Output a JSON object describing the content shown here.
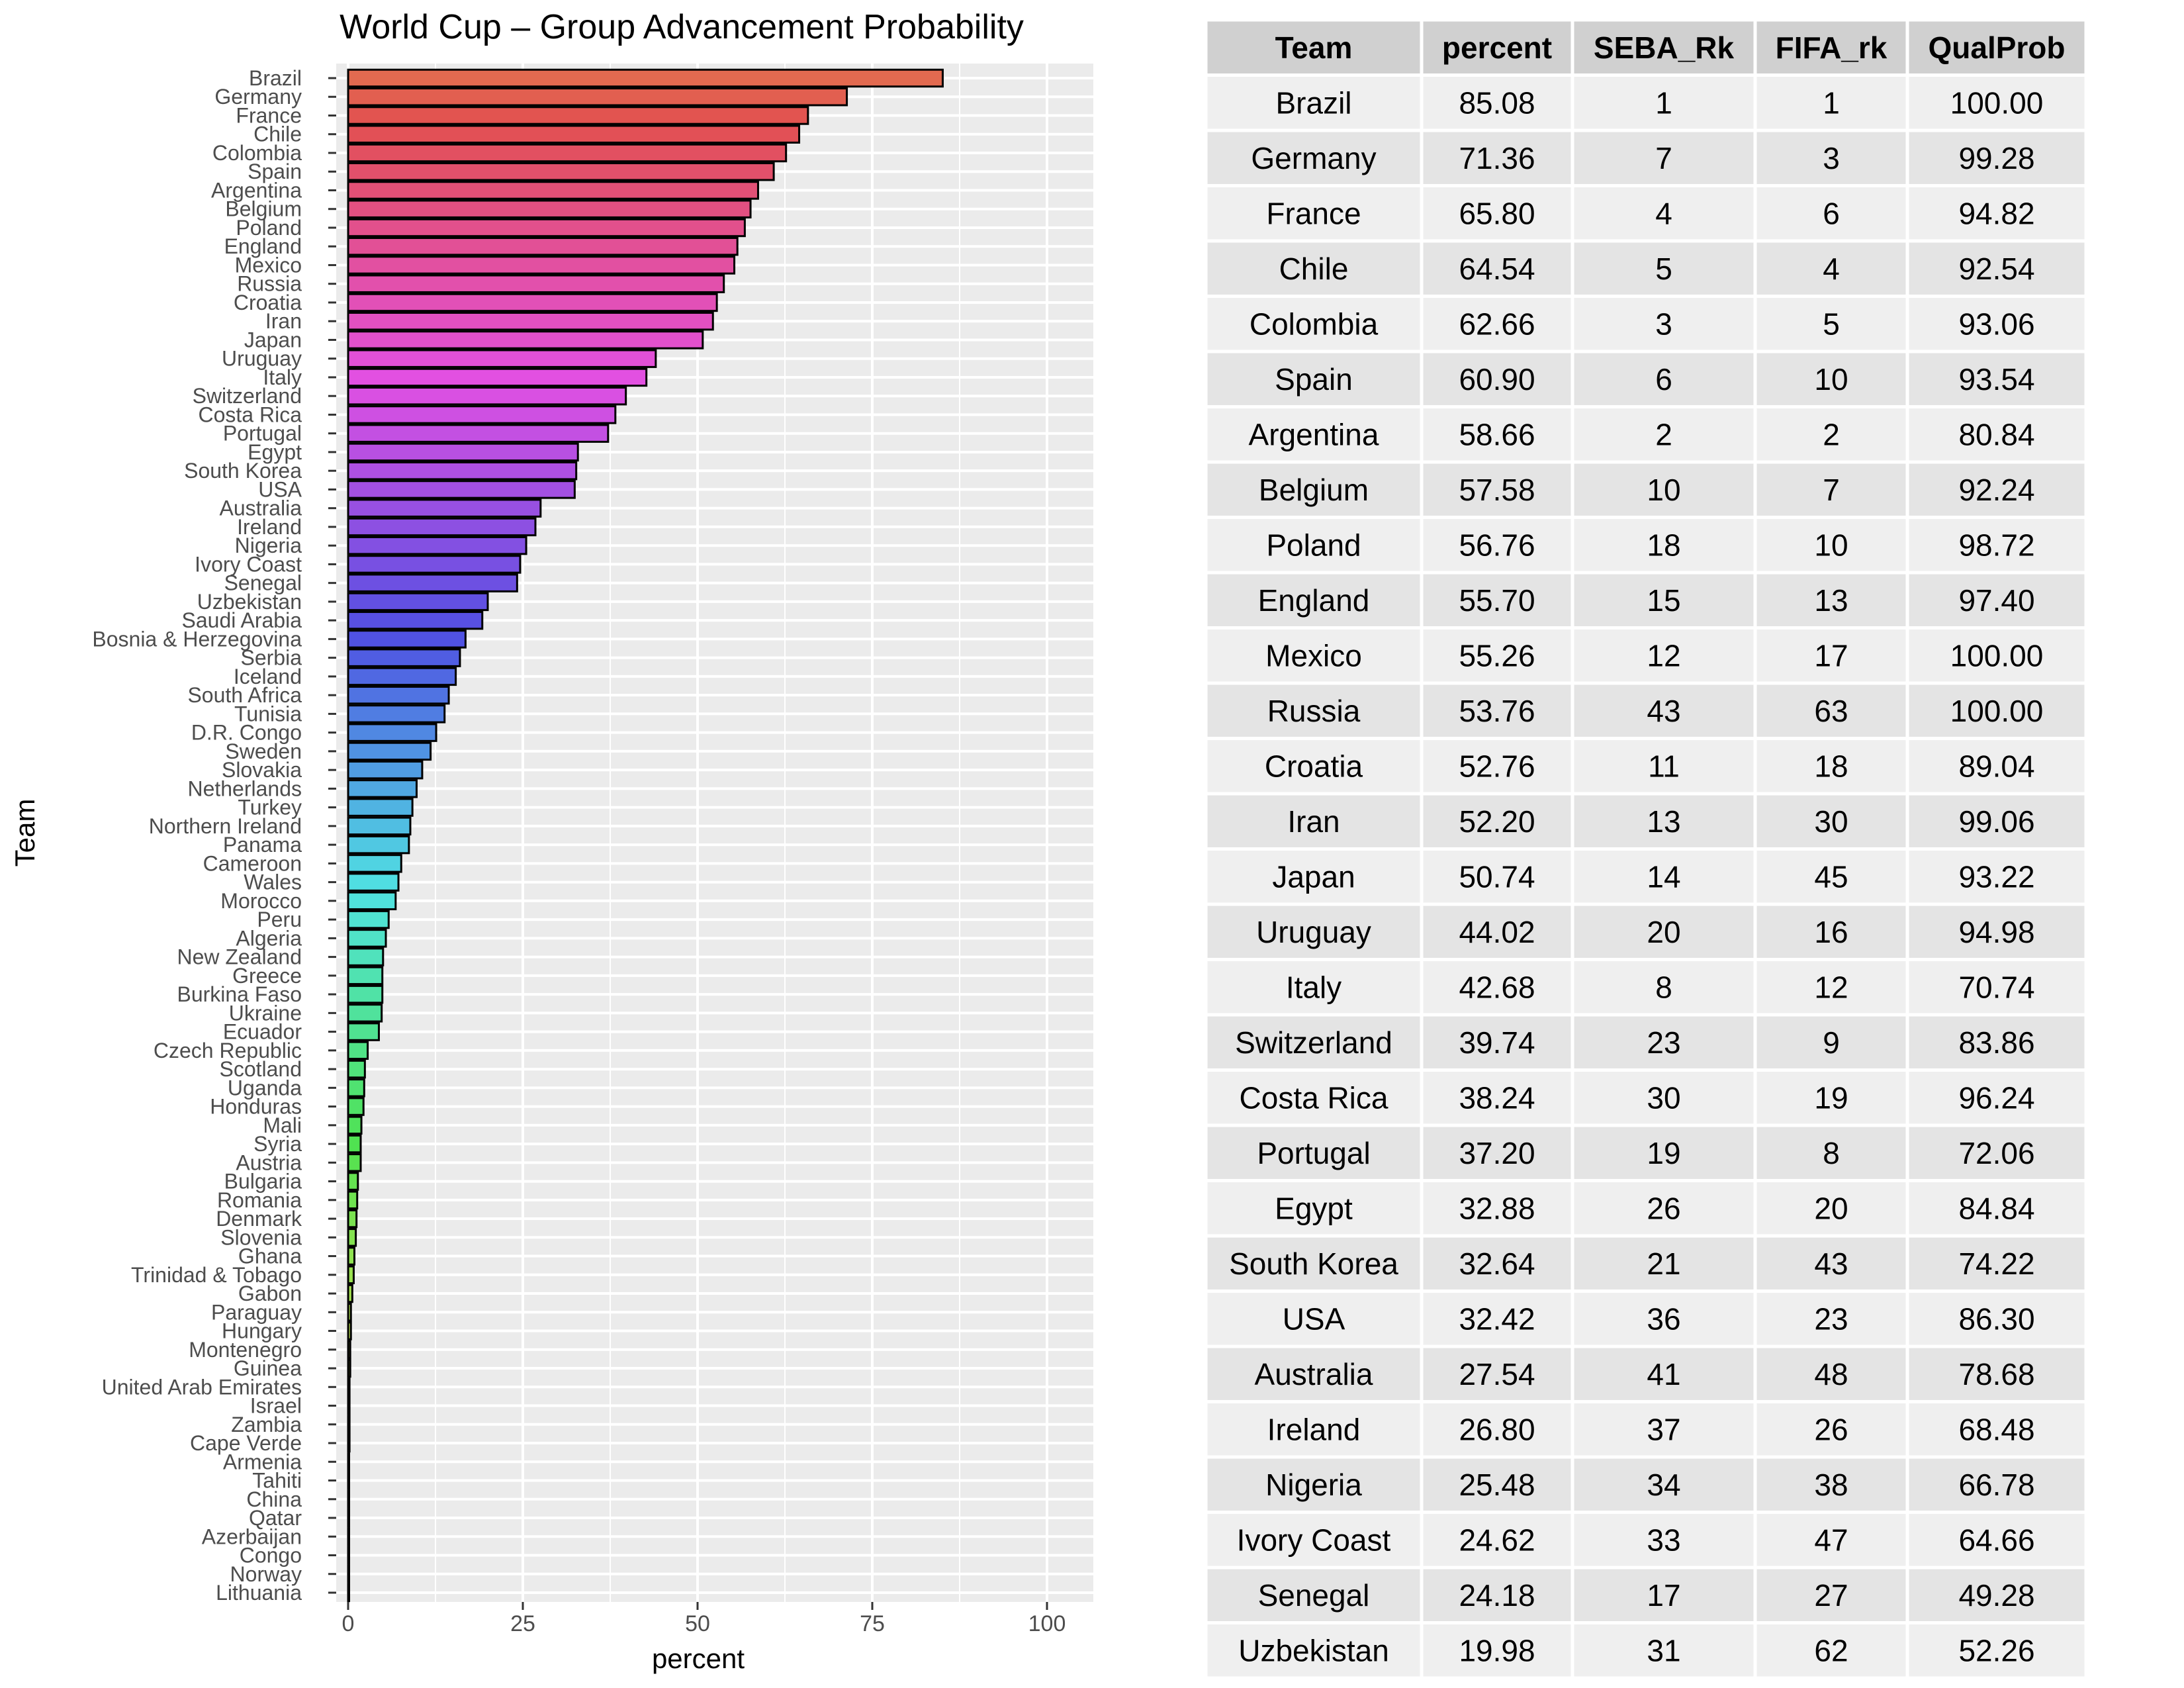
{
  "chart_data": {
    "type": "bar",
    "orientation": "horizontal",
    "title": "World Cup – Group Advancement Probability",
    "xlabel": "percent",
    "ylabel": "Team",
    "xlim": [
      0,
      100
    ],
    "xticks": [
      0,
      25,
      50,
      75,
      100
    ],
    "grid": true,
    "categories": [
      "Brazil",
      "Germany",
      "France",
      "Chile",
      "Colombia",
      "Spain",
      "Argentina",
      "Belgium",
      "Poland",
      "England",
      "Mexico",
      "Russia",
      "Croatia",
      "Iran",
      "Japan",
      "Uruguay",
      "Italy",
      "Switzerland",
      "Costa Rica",
      "Portugal",
      "Egypt",
      "South Korea",
      "USA",
      "Australia",
      "Ireland",
      "Nigeria",
      "Ivory Coast",
      "Senegal",
      "Uzbekistan",
      "Saudi Arabia",
      "Bosnia & Herzegovina",
      "Serbia",
      "Iceland",
      "South Africa",
      "Tunisia",
      "D.R. Congo",
      "Sweden",
      "Slovakia",
      "Netherlands",
      "Turkey",
      "Northern Ireland",
      "Panama",
      "Cameroon",
      "Wales",
      "Morocco",
      "Peru",
      "Algeria",
      "New Zealand",
      "Greece",
      "Burkina Faso",
      "Ukraine",
      "Ecuador",
      "Czech Republic",
      "Scotland",
      "Uganda",
      "Honduras",
      "Mali",
      "Syria",
      "Austria",
      "Bulgaria",
      "Romania",
      "Denmark",
      "Slovenia",
      "Ghana",
      "Trinidad & Tobago",
      "Gabon",
      "Paraguay",
      "Hungary",
      "Montenegro",
      "Guinea",
      "United Arab Emirates",
      "Israel",
      "Zambia",
      "Cape Verde",
      "Armenia",
      "Tahiti",
      "China",
      "Qatar",
      "Azerbaijan",
      "Congo",
      "Norway",
      "Lithuania"
    ],
    "values": [
      85.08,
      71.36,
      65.8,
      64.54,
      62.66,
      60.9,
      58.66,
      57.58,
      56.76,
      55.7,
      55.26,
      53.76,
      52.76,
      52.2,
      50.74,
      44.02,
      42.68,
      39.74,
      38.24,
      37.2,
      32.88,
      32.64,
      32.42,
      27.54,
      26.8,
      25.48,
      24.62,
      24.18,
      19.98,
      19.2,
      16.8,
      16.0,
      15.4,
      14.4,
      13.8,
      12.6,
      11.8,
      10.6,
      9.8,
      9.2,
      8.9,
      8.7,
      7.6,
      7.2,
      6.8,
      5.8,
      5.4,
      5.0,
      4.9,
      4.9,
      4.8,
      4.4,
      2.8,
      2.4,
      2.3,
      2.2,
      1.9,
      1.8,
      1.8,
      1.4,
      1.3,
      1.2,
      1.1,
      0.9,
      0.8,
      0.6,
      0.4,
      0.4,
      0.3,
      0.3,
      0.2,
      0.2,
      0.2,
      0.2,
      0.1,
      0.1,
      0.1,
      0.1,
      0.1,
      0.05,
      0.05,
      0.05
    ]
  },
  "table": {
    "headers": [
      "Team",
      "percent",
      "SEBA_Rk",
      "FIFA_rk",
      "QualProb"
    ],
    "rows": [
      [
        "Brazil",
        "85.08",
        "1",
        "1",
        "100.00"
      ],
      [
        "Germany",
        "71.36",
        "7",
        "3",
        "99.28"
      ],
      [
        "France",
        "65.80",
        "4",
        "6",
        "94.82"
      ],
      [
        "Chile",
        "64.54",
        "5",
        "4",
        "92.54"
      ],
      [
        "Colombia",
        "62.66",
        "3",
        "5",
        "93.06"
      ],
      [
        "Spain",
        "60.90",
        "6",
        "10",
        "93.54"
      ],
      [
        "Argentina",
        "58.66",
        "2",
        "2",
        "80.84"
      ],
      [
        "Belgium",
        "57.58",
        "10",
        "7",
        "92.24"
      ],
      [
        "Poland",
        "56.76",
        "18",
        "10",
        "98.72"
      ],
      [
        "England",
        "55.70",
        "15",
        "13",
        "97.40"
      ],
      [
        "Mexico",
        "55.26",
        "12",
        "17",
        "100.00"
      ],
      [
        "Russia",
        "53.76",
        "43",
        "63",
        "100.00"
      ],
      [
        "Croatia",
        "52.76",
        "11",
        "18",
        "89.04"
      ],
      [
        "Iran",
        "52.20",
        "13",
        "30",
        "99.06"
      ],
      [
        "Japan",
        "50.74",
        "14",
        "45",
        "93.22"
      ],
      [
        "Uruguay",
        "44.02",
        "20",
        "16",
        "94.98"
      ],
      [
        "Italy",
        "42.68",
        "8",
        "12",
        "70.74"
      ],
      [
        "Switzerland",
        "39.74",
        "23",
        "9",
        "83.86"
      ],
      [
        "Costa Rica",
        "38.24",
        "30",
        "19",
        "96.24"
      ],
      [
        "Portugal",
        "37.20",
        "19",
        "8",
        "72.06"
      ],
      [
        "Egypt",
        "32.88",
        "26",
        "20",
        "84.84"
      ],
      [
        "South Korea",
        "32.64",
        "21",
        "43",
        "74.22"
      ],
      [
        "USA",
        "32.42",
        "36",
        "23",
        "86.30"
      ],
      [
        "Australia",
        "27.54",
        "41",
        "48",
        "78.68"
      ],
      [
        "Ireland",
        "26.80",
        "37",
        "26",
        "68.48"
      ],
      [
        "Nigeria",
        "25.48",
        "34",
        "38",
        "66.78"
      ],
      [
        "Ivory Coast",
        "24.62",
        "33",
        "47",
        "64.66"
      ],
      [
        "Senegal",
        "24.18",
        "17",
        "27",
        "49.28"
      ],
      [
        "Uzbekistan",
        "19.98",
        "31",
        "62",
        "52.26"
      ]
    ]
  }
}
